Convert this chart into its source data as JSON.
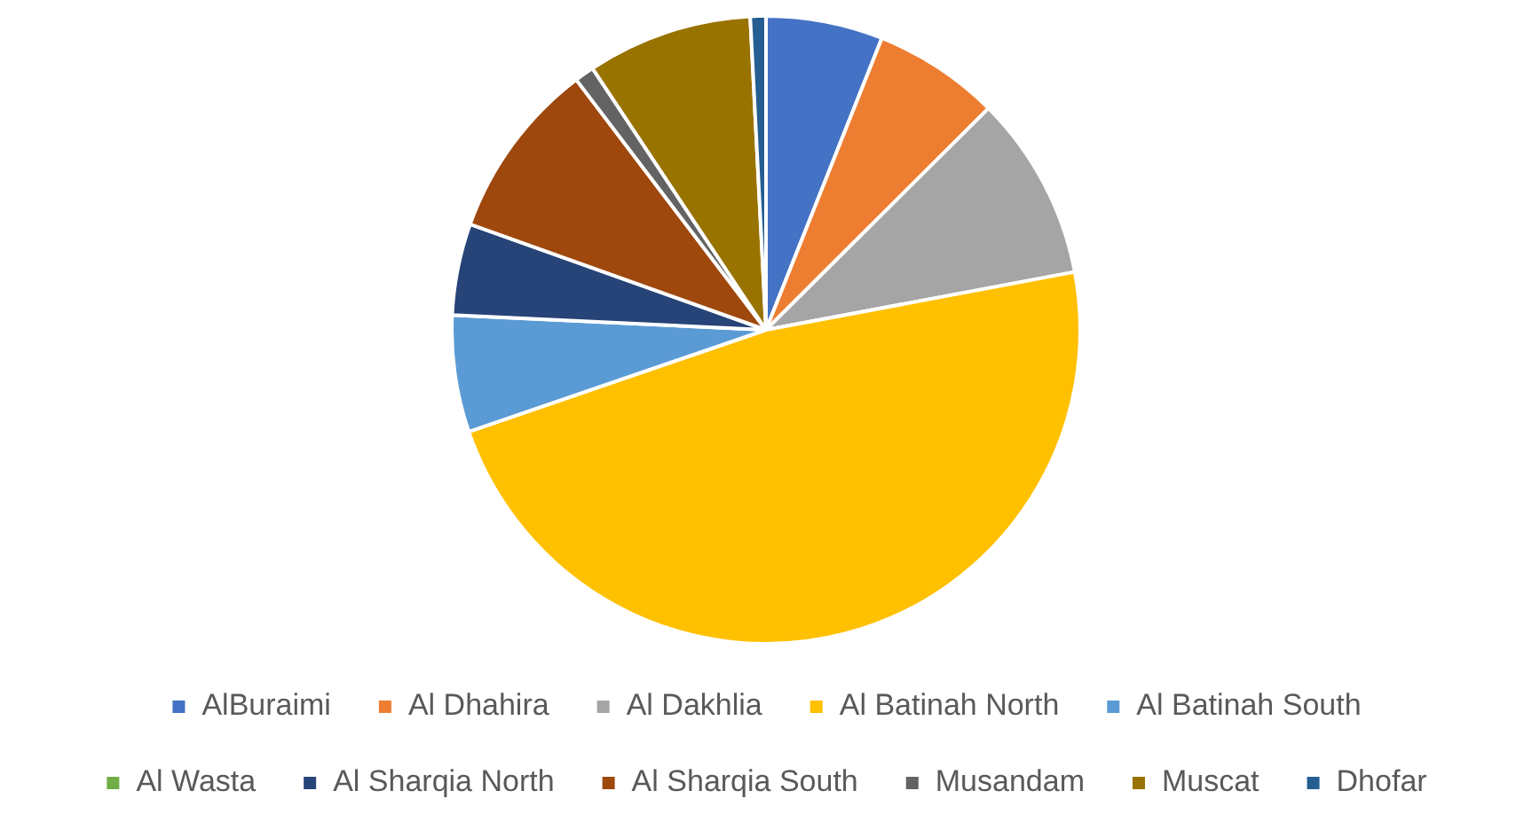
{
  "chart_data": {
    "type": "pie",
    "categories": [
      "AlBuraimi",
      "Al Dhahira",
      "Al Dakhlia",
      "Al Batinah North",
      "Al Batinah South",
      "Al Wasta",
      "Al Sharqia North",
      "Al Sharqia South",
      "Musandam",
      "Muscat",
      "Dhofar"
    ],
    "values": [
      6,
      6.5,
      9.5,
      47.6,
      6,
      null,
      4.7,
      9.2,
      1,
      8.5,
      0.8
    ],
    "colors": [
      "#4472c4",
      "#ed7d31",
      "#a5a5a5",
      "#ffc000",
      "#5b9bd5",
      "#70ad47",
      "#264478",
      "#9e480e",
      "#636363",
      "#997300",
      "#255e91"
    ],
    "legend": "bottom"
  }
}
